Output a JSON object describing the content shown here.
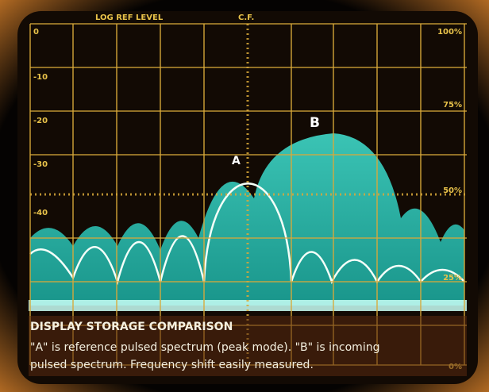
{
  "header": {
    "left": "LOG REF LEVEL",
    "center": "C.F."
  },
  "left_scale": [
    "0",
    "-10",
    "-20",
    "-30",
    "-40"
  ],
  "right_scale": [
    "100%",
    "75%",
    "50%",
    "25%",
    "0%"
  ],
  "markers": [
    "A",
    "B"
  ],
  "caption": {
    "title": "DISPLAY STORAGE COMPARISON",
    "lines": [
      "\"A\" is reference pulsed spectrum (peak mode). \"B\" is incoming",
      "pulsed spectrum. Frequency shift easily measured."
    ]
  }
}
